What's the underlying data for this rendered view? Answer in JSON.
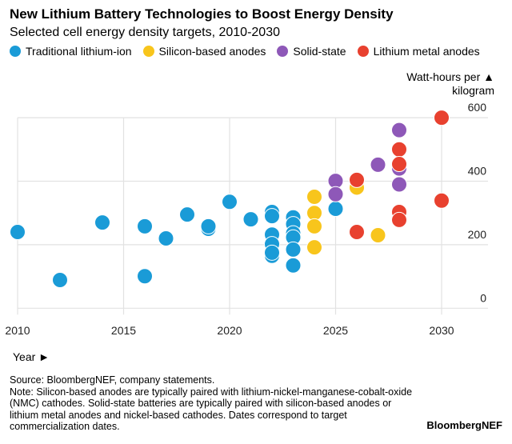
{
  "title": "New Lithium Battery Technologies to Boost Energy Density",
  "subtitle": "Selected cell energy density targets, 2010-2030",
  "unit_label_line1": "Watt-hours per ▲",
  "unit_label_line2": "kilogram",
  "year_label": "Year ►",
  "source": "Source: BloombergNEF, company statements.",
  "note": "Note: Silicon-based anodes are typically paired with lithium-nickel-manganese-cobalt-oxide (NMC) cathodes. Solid-state batteries are typically paired with silicon-based anodes or lithium metal anodes and nickel-based cathodes. Dates correspond to target commercialization dates.",
  "logo": "BloombergNEF",
  "chart_data": {
    "type": "scatter",
    "xlabel": "Year ►",
    "ylabel": "Watt-hours per kilogram",
    "xlim": [
      2010,
      2031.5
    ],
    "ylim": [
      0,
      600
    ],
    "x_ticks": [
      2010,
      2015,
      2020,
      2025,
      2030
    ],
    "y_ticks": [
      0,
      200,
      400,
      600
    ],
    "grid": true,
    "legend_position": "top",
    "series": [
      {
        "name": "Traditional lithium-ion",
        "color": "#1a9bd7",
        "points": [
          [
            2010,
            240
          ],
          [
            2012,
            89
          ],
          [
            2014,
            270
          ],
          [
            2016,
            258
          ],
          [
            2016,
            101
          ],
          [
            2017,
            220
          ],
          [
            2018,
            295
          ],
          [
            2019,
            250
          ],
          [
            2019,
            258
          ],
          [
            2020,
            335
          ],
          [
            2021,
            280
          ],
          [
            2022,
            303
          ],
          [
            2022,
            290
          ],
          [
            2022,
            232
          ],
          [
            2022,
            202
          ],
          [
            2022,
            165
          ],
          [
            2022,
            175
          ],
          [
            2023,
            286
          ],
          [
            2023,
            265
          ],
          [
            2023,
            236
          ],
          [
            2023,
            223
          ],
          [
            2023,
            185
          ],
          [
            2023,
            135
          ],
          [
            2025,
            313
          ]
        ]
      },
      {
        "name": "Silicon-based anodes",
        "color": "#f8c51c",
        "points": [
          [
            2024,
            351
          ],
          [
            2024,
            300
          ],
          [
            2024,
            258
          ],
          [
            2024,
            192
          ],
          [
            2026,
            380
          ],
          [
            2027,
            230
          ]
        ]
      },
      {
        "name": "Solid-state",
        "color": "#8e58b8",
        "points": [
          [
            2025,
            401
          ],
          [
            2025,
            359
          ],
          [
            2027,
            452
          ],
          [
            2028,
            561
          ],
          [
            2028,
            440
          ],
          [
            2028,
            390
          ]
        ]
      },
      {
        "name": "Lithium metal anodes",
        "color": "#e8412f",
        "points": [
          [
            2026,
            404
          ],
          [
            2026,
            240
          ],
          [
            2028,
            500
          ],
          [
            2028,
            454
          ],
          [
            2028,
            303
          ],
          [
            2028,
            278
          ],
          [
            2030,
            600
          ],
          [
            2030,
            339
          ]
        ]
      }
    ]
  }
}
